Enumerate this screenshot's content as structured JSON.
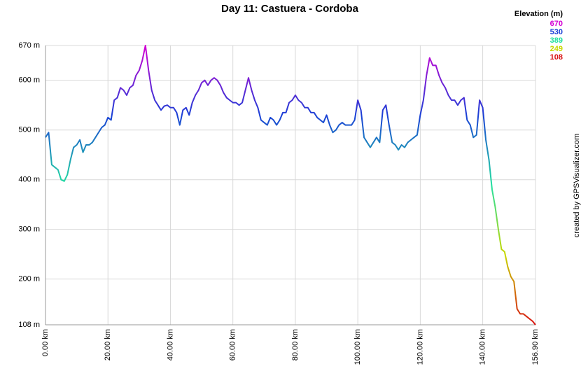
{
  "chart_data": {
    "type": "line",
    "title": "Day 11: Castuera - Cordoba",
    "credit": "created by GPSVisualizer.com",
    "legend_title": "Elevation (m)",
    "color_scale": [
      {
        "value": 670,
        "color": "#d400d4"
      },
      {
        "value": 530,
        "color": "#1a3fd6"
      },
      {
        "value": 389,
        "color": "#22e0a0"
      },
      {
        "value": 249,
        "color": "#c8d800"
      },
      {
        "value": 108,
        "color": "#d81010"
      }
    ],
    "xlim": [
      0,
      156.9
    ],
    "ylim": [
      108,
      670
    ],
    "grid": true,
    "yticks": [
      {
        "value": 108,
        "label": "108 m"
      },
      {
        "value": 200,
        "label": "200 m"
      },
      {
        "value": 300,
        "label": "300 m"
      },
      {
        "value": 400,
        "label": "400 m"
      },
      {
        "value": 500,
        "label": "500 m"
      },
      {
        "value": 600,
        "label": "600 m"
      },
      {
        "value": 670,
        "label": "670 m"
      }
    ],
    "xticks": [
      {
        "value": 0,
        "label": "0.00 km"
      },
      {
        "value": 20,
        "label": "20.00 km"
      },
      {
        "value": 40,
        "label": "40.00 km"
      },
      {
        "value": 60,
        "label": "60.00 km"
      },
      {
        "value": 80,
        "label": "80.00 km"
      },
      {
        "value": 100,
        "label": "100.00 km"
      },
      {
        "value": 120,
        "label": "120.00 km"
      },
      {
        "value": 140,
        "label": "140.00 km"
      },
      {
        "value": 156.9,
        "label": "156.90 km"
      }
    ],
    "series": [
      {
        "name": "Elevation",
        "x": [
          0,
          1,
          2,
          3,
          4,
          5,
          6,
          7,
          8,
          9,
          10,
          11,
          12,
          13,
          14,
          15,
          16,
          17,
          18,
          19,
          20,
          21,
          22,
          23,
          24,
          25,
          26,
          27,
          28,
          29,
          30,
          31,
          32,
          33,
          34,
          35,
          36,
          37,
          38,
          39,
          40,
          41,
          42,
          43,
          44,
          45,
          46,
          47,
          48,
          49,
          50,
          51,
          52,
          53,
          54,
          55,
          56,
          57,
          58,
          59,
          60,
          61,
          62,
          63,
          64,
          65,
          66,
          67,
          68,
          69,
          70,
          71,
          72,
          73,
          74,
          75,
          76,
          77,
          78,
          79,
          80,
          81,
          82,
          83,
          84,
          85,
          86,
          87,
          88,
          89,
          90,
          91,
          92,
          93,
          94,
          95,
          96,
          97,
          98,
          99,
          100,
          101,
          102,
          103,
          104,
          105,
          106,
          107,
          108,
          109,
          110,
          111,
          112,
          113,
          114,
          115,
          116,
          117,
          118,
          119,
          120,
          121,
          122,
          123,
          124,
          125,
          126,
          127,
          128,
          129,
          130,
          131,
          132,
          133,
          134,
          135,
          136,
          137,
          138,
          139,
          140,
          141,
          142,
          143,
          144,
          145,
          146,
          147,
          148,
          149,
          150,
          151,
          152,
          153,
          154,
          155,
          156,
          156.9
        ],
        "values": [
          485,
          495,
          430,
          425,
          420,
          400,
          397,
          410,
          440,
          465,
          470,
          480,
          455,
          470,
          470,
          475,
          485,
          495,
          505,
          510,
          525,
          520,
          560,
          565,
          585,
          580,
          570,
          585,
          590,
          610,
          620,
          640,
          670,
          620,
          580,
          560,
          550,
          540,
          548,
          550,
          545,
          545,
          535,
          510,
          540,
          545,
          530,
          555,
          570,
          580,
          595,
          600,
          590,
          600,
          605,
          600,
          590,
          575,
          565,
          560,
          555,
          555,
          550,
          555,
          580,
          605,
          580,
          560,
          545,
          520,
          515,
          510,
          525,
          520,
          510,
          520,
          535,
          535,
          555,
          560,
          570,
          560,
          555,
          545,
          545,
          535,
          535,
          525,
          520,
          515,
          530,
          510,
          495,
          500,
          510,
          515,
          510,
          510,
          510,
          520,
          560,
          540,
          485,
          475,
          465,
          475,
          485,
          475,
          540,
          550,
          510,
          475,
          470,
          460,
          470,
          465,
          475,
          480,
          485,
          490,
          530,
          560,
          610,
          645,
          630,
          630,
          610,
          595,
          585,
          570,
          560,
          560,
          550,
          560,
          565,
          520,
          510,
          485,
          490,
          560,
          545,
          480,
          440,
          380,
          345,
          300,
          260,
          255,
          225,
          205,
          195,
          140,
          130,
          130,
          125,
          120,
          115,
          108
        ]
      }
    ]
  }
}
